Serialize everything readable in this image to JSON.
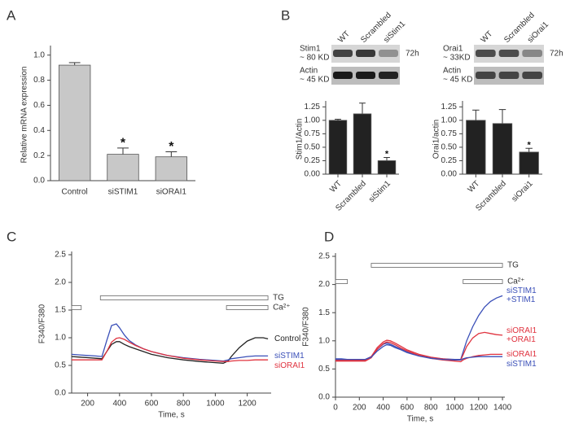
{
  "panels": [
    "A",
    "B",
    "C",
    "D"
  ],
  "chart_data": [
    {
      "type": "bar",
      "ylabel": "Relative mRNA expression",
      "categories": [
        "Control",
        "siSTIM1",
        "siORAI1"
      ],
      "values": [
        0.92,
        0.21,
        0.19
      ],
      "errors": [
        0.02,
        0.05,
        0.04
      ],
      "significance": [
        null,
        "*",
        "*"
      ],
      "color": "#c8c8c8",
      "ylim": [
        0,
        1.05
      ],
      "yticks": [
        {
          "value": 0,
          "label": "0.0"
        },
        0.2,
        0.4,
        0.6,
        0.8,
        {
          "value": 1,
          "label": "1.0"
        }
      ]
    },
    {
      "type": "bar",
      "ylabel": "Stim1/Actin",
      "categories": [
        "WT",
        "Scrambled",
        "siStim1"
      ],
      "values": [
        1.0,
        1.12,
        0.25
      ],
      "errors": [
        0.02,
        0.2,
        0.06
      ],
      "significance": [
        null,
        null,
        "*"
      ],
      "color": "#222222",
      "ylim": [
        0,
        1.3
      ],
      "yticks": [
        {
          "value": 0,
          "label": "0.00"
        },
        0.25,
        {
          "value": 0.5,
          "label": "0.50"
        },
        0.75,
        {
          "value": 1,
          "label": "1.00"
        },
        1.25
      ],
      "blot": {
        "target": [
          "Stim1",
          "~ 80 KD"
        ],
        "loading": [
          "Actin",
          "~ 45 KD"
        ],
        "time": "72h"
      }
    },
    {
      "type": "bar",
      "ylabel": "Orai1/actin",
      "categories": [
        "WT",
        "Scrambled",
        "siOrai1"
      ],
      "values": [
        1.0,
        0.94,
        0.41
      ],
      "errors": [
        0.19,
        0.26,
        0.07
      ],
      "significance": [
        null,
        null,
        "*"
      ],
      "color": "#222222",
      "ylim": [
        0,
        1.3
      ],
      "yticks": [
        {
          "value": 0,
          "label": "0.00"
        },
        0.25,
        {
          "value": 0.5,
          "label": "0.50"
        },
        0.75,
        {
          "value": 1,
          "label": "1.00"
        },
        1.25
      ],
      "blot": {
        "target": [
          "Orai1",
          "~ 33KD"
        ],
        "loading": [
          "Actin",
          "~ 45 KD"
        ],
        "time": "72h"
      }
    },
    {
      "type": "line",
      "xlabel": "Time, s",
      "ylabel": "F340/F380",
      "x": [
        100,
        150,
        200,
        250,
        290,
        320,
        350,
        380,
        400,
        430,
        460,
        500,
        550,
        600,
        700,
        800,
        900,
        1000,
        1050,
        1080,
        1100,
        1150,
        1200,
        1250,
        1300,
        1330
      ],
      "series": [
        {
          "name": "Control",
          "color": "#222222",
          "values": [
            0.66,
            0.65,
            0.64,
            0.63,
            0.62,
            0.75,
            0.88,
            0.93,
            0.93,
            0.88,
            0.84,
            0.8,
            0.75,
            0.7,
            0.64,
            0.6,
            0.57,
            0.55,
            0.54,
            0.58,
            0.66,
            0.82,
            0.94,
            1.0,
            1.0,
            0.98
          ]
        },
        {
          "name": "siSTIM1",
          "color": "#3a4fb8",
          "values": [
            0.7,
            0.69,
            0.68,
            0.67,
            0.66,
            0.95,
            1.22,
            1.25,
            1.18,
            1.05,
            0.95,
            0.87,
            0.8,
            0.75,
            0.68,
            0.64,
            0.61,
            0.59,
            0.58,
            0.6,
            0.62,
            0.64,
            0.66,
            0.67,
            0.67,
            0.67
          ]
        },
        {
          "name": "siORAI1",
          "color": "#e0333f",
          "values": [
            0.6,
            0.6,
            0.6,
            0.6,
            0.6,
            0.75,
            0.92,
            0.99,
            1.0,
            0.97,
            0.92,
            0.86,
            0.8,
            0.75,
            0.68,
            0.63,
            0.6,
            0.58,
            0.57,
            0.57,
            0.58,
            0.59,
            0.59,
            0.6,
            0.6,
            0.6
          ]
        }
      ],
      "periods": [
        {
          "label": "TG",
          "segments": [
            [
              280,
              1330
            ]
          ]
        },
        {
          "label": "Ca²⁺",
          "segments": [
            [
              100,
              160
            ],
            [
              1070,
              1330
            ]
          ]
        }
      ],
      "xlim": [
        100,
        1350
      ],
      "xticks": [
        200,
        400,
        600,
        800,
        1000,
        1200
      ],
      "ylim": [
        0,
        2.5
      ],
      "yticks": [
        {
          "value": 0,
          "label": "0.0"
        },
        0.5,
        {
          "value": 1,
          "label": "1.0"
        },
        1.5,
        {
          "value": 2,
          "label": "2.0"
        },
        2.5
      ]
    },
    {
      "type": "line",
      "xlabel": "Time, s",
      "ylabel": "F340/F380",
      "x": [
        0,
        50,
        100,
        150,
        200,
        250,
        300,
        350,
        400,
        430,
        460,
        500,
        550,
        600,
        700,
        800,
        900,
        1000,
        1050,
        1070,
        1100,
        1150,
        1200,
        1250,
        1300,
        1350,
        1400
      ],
      "series": [
        {
          "name": "siSTIM1 +STIM1",
          "color": "#3a4fb8",
          "values": [
            0.68,
            0.68,
            0.67,
            0.67,
            0.67,
            0.67,
            0.72,
            0.85,
            0.94,
            0.96,
            0.94,
            0.9,
            0.85,
            0.8,
            0.74,
            0.7,
            0.68,
            0.67,
            0.67,
            0.8,
            1.0,
            1.25,
            1.45,
            1.6,
            1.7,
            1.76,
            1.8
          ]
        },
        {
          "name": "siORAI1 +ORAI1",
          "color": "#e0333f",
          "values": [
            0.66,
            0.66,
            0.66,
            0.66,
            0.66,
            0.66,
            0.72,
            0.88,
            0.98,
            1.01,
            1.0,
            0.96,
            0.9,
            0.84,
            0.76,
            0.71,
            0.68,
            0.66,
            0.66,
            0.75,
            0.9,
            1.05,
            1.13,
            1.15,
            1.13,
            1.11,
            1.1
          ]
        },
        {
          "name": "siORAI1",
          "color": "#e0333f",
          "values": [
            0.64,
            0.64,
            0.64,
            0.64,
            0.64,
            0.64,
            0.7,
            0.85,
            0.95,
            0.98,
            0.97,
            0.93,
            0.87,
            0.82,
            0.74,
            0.69,
            0.66,
            0.64,
            0.63,
            0.66,
            0.69,
            0.72,
            0.74,
            0.75,
            0.76,
            0.76,
            0.76
          ]
        },
        {
          "name": "siSTIM1",
          "color": "#3a4fb8",
          "values": [
            0.67,
            0.67,
            0.67,
            0.67,
            0.67,
            0.67,
            0.71,
            0.82,
            0.9,
            0.93,
            0.92,
            0.88,
            0.84,
            0.79,
            0.73,
            0.69,
            0.67,
            0.66,
            0.66,
            0.68,
            0.7,
            0.71,
            0.72,
            0.72,
            0.72,
            0.72,
            0.72
          ]
        }
      ],
      "periods": [
        {
          "label": "TG",
          "segments": [
            [
              300,
              1400
            ]
          ]
        },
        {
          "label": "Ca²⁺",
          "segments": [
            [
              0,
              100
            ],
            [
              1070,
              1400
            ]
          ]
        }
      ],
      "xlim": [
        0,
        1420
      ],
      "xticks": [
        0,
        200,
        400,
        600,
        800,
        1000,
        1200,
        1400
      ],
      "ylim": [
        0,
        2.5
      ],
      "yticks": [
        {
          "value": 0,
          "label": "0.0"
        },
        0.5,
        {
          "value": 1,
          "label": "1.0"
        },
        1.5,
        {
          "value": 2,
          "label": "2.0"
        },
        2.5
      ]
    }
  ]
}
